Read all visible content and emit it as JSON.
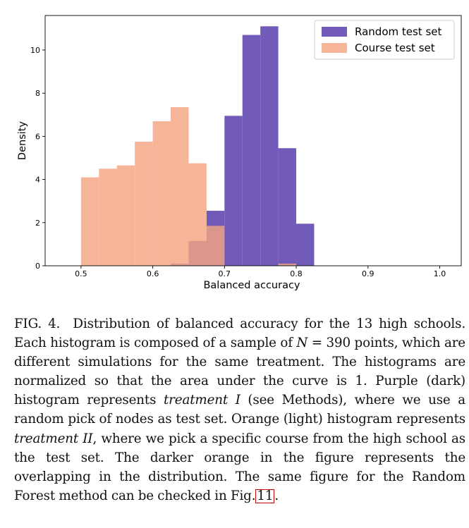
{
  "chart_data": {
    "type": "histogram",
    "xlabel": "Balanced accuracy",
    "ylabel": "Density",
    "xlim": [
      0.45,
      1.03
    ],
    "ylim": [
      0,
      11.6
    ],
    "xticks": [
      0.5,
      0.6,
      0.7,
      0.8,
      0.9,
      1.0
    ],
    "xtick_labels": [
      "0.5",
      "0.6",
      "0.7",
      "0.8",
      "0.9",
      "1.0"
    ],
    "yticks": [
      0,
      2,
      4,
      6,
      8,
      10
    ],
    "ytick_labels": [
      "0",
      "2",
      "4",
      "6",
      "8",
      "10"
    ],
    "legend_position": "top-right",
    "series": [
      {
        "name": "Random test set",
        "color": "#6a51b5",
        "bin_edges": [
          0.625,
          0.65,
          0.675,
          0.7,
          0.725,
          0.75,
          0.775,
          0.8,
          0.825
        ],
        "values": [
          0.1,
          1.15,
          2.55,
          6.95,
          10.7,
          11.1,
          5.45,
          1.95
        ]
      },
      {
        "name": "Course test set",
        "color": "#f4a582",
        "bin_edges": [
          0.5,
          0.525,
          0.55,
          0.575,
          0.6,
          0.625,
          0.65,
          0.675,
          0.7,
          0.725,
          0.75,
          0.775,
          0.8
        ],
        "values": [
          4.1,
          4.5,
          4.65,
          5.75,
          6.7,
          7.35,
          4.75,
          1.85,
          0,
          0,
          0,
          0.1
        ]
      }
    ]
  },
  "caption": {
    "label": "FIG. 4.",
    "part1": "Distribution of balanced accuracy for the 13 high schools. Each histogram is composed of a sample of ",
    "math_n": "N",
    "math_eq": " = 390",
    "part2": " points, which are different simulations for the same treatment. The histograms are normalized so that the area under the curve is 1. Purple (dark) histogram represents ",
    "treatment_1": "treatment I",
    "part3": " (see Methods), where we use a random pick of nodes as test set. Orange (light) histogram represents ",
    "treatment_2": "treatment II",
    "part4": ", where we pick a specific course from the high school as the test set. The darker orange in the figure represents the overlapping in the distribution. The same figure for the Random Forest method can be checked in Fig.",
    "fig_ref": "11",
    "part5": "."
  }
}
